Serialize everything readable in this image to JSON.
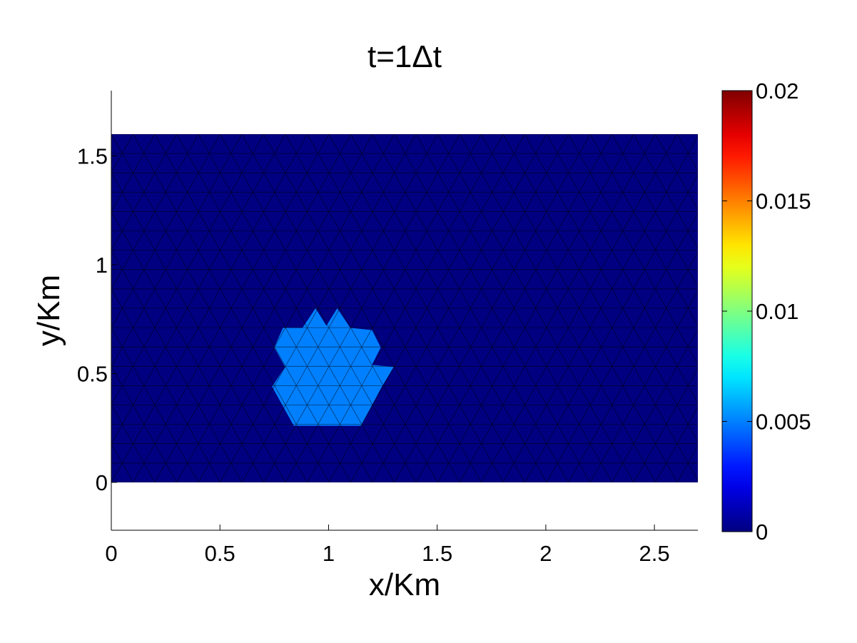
{
  "chart_data": {
    "type": "heatmap",
    "subtype": "triangular-mesh",
    "title": "t=1Δt",
    "xlabel": "x/Km",
    "ylabel": "y/Km",
    "xlim": [
      0,
      2.7
    ],
    "ylim": [
      -0.22,
      1.8
    ],
    "x_ticks": [
      0,
      0.5,
      1,
      1.5,
      2,
      2.5
    ],
    "x_tick_labels": [
      "0",
      "0.5",
      "1",
      "1.5",
      "2",
      "2.5"
    ],
    "y_ticks": [
      0,
      0.5,
      1,
      1.5
    ],
    "y_tick_labels": [
      "0",
      "0.5",
      "1",
      "1.5"
    ],
    "domain": {
      "x": [
        0,
        2.7
      ],
      "y": [
        0,
        1.6
      ]
    },
    "colormap": "jet",
    "clim": [
      0,
      0.02
    ],
    "colorbar_ticks": [
      0,
      0.005,
      0.01,
      0.015,
      0.02
    ],
    "colorbar_tick_labels": [
      "0",
      "0.005",
      "0.01",
      "0.015",
      "0.02"
    ],
    "background_value": 0,
    "plume": {
      "value": 0.005,
      "vertices": [
        [
          0.84,
          0.26
        ],
        [
          1.15,
          0.26
        ],
        [
          1.24,
          0.43
        ],
        [
          1.3,
          0.53
        ],
        [
          1.2,
          0.54
        ],
        [
          1.24,
          0.62
        ],
        [
          1.2,
          0.7
        ],
        [
          1.1,
          0.71
        ],
        [
          1.04,
          0.8
        ],
        [
          0.99,
          0.72
        ],
        [
          0.94,
          0.8
        ],
        [
          0.88,
          0.71
        ],
        [
          0.79,
          0.71
        ],
        [
          0.75,
          0.62
        ],
        [
          0.8,
          0.53
        ],
        [
          0.74,
          0.44
        ]
      ]
    },
    "grid": false,
    "mesh_visible": true,
    "legend": "colorbar right"
  }
}
